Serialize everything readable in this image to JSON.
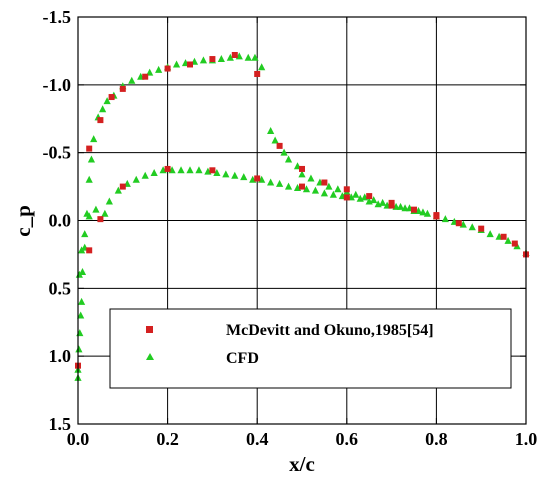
{
  "chart_data": {
    "type": "scatter",
    "xlabel": "x/c",
    "ylabel": "c_p",
    "xlim": [
      0.0,
      1.0
    ],
    "ylim": [
      1.5,
      -1.5
    ],
    "y_axis_inverted": true,
    "x_ticks": [
      "0.0",
      "0.2",
      "0.4",
      "0.6",
      "0.8",
      "1.0"
    ],
    "x_tick_values": [
      0.0,
      0.2,
      0.4,
      0.6,
      0.8,
      1.0
    ],
    "y_ticks": [
      "-1.5",
      "-1.0",
      "-0.5",
      "0.0",
      "0.5",
      "1.0",
      "1.5"
    ],
    "y_tick_values": [
      -1.5,
      -1.0,
      -0.5,
      0.0,
      0.5,
      1.0,
      1.5
    ],
    "grid": true,
    "legend_position": "lower-center",
    "series": [
      {
        "name": "McDevitt and Okuno,1985[54]",
        "marker": "square",
        "color": "#d42020",
        "points": [
          [
            0.0,
            1.07
          ],
          [
            0.025,
            -0.53
          ],
          [
            0.05,
            -0.74
          ],
          [
            0.075,
            -0.91
          ],
          [
            0.1,
            -0.97
          ],
          [
            0.15,
            -1.06
          ],
          [
            0.2,
            -1.12
          ],
          [
            0.25,
            -1.15
          ],
          [
            0.3,
            -1.19
          ],
          [
            0.35,
            -1.22
          ],
          [
            0.4,
            -1.08
          ],
          [
            0.45,
            -0.55
          ],
          [
            0.5,
            -0.38
          ],
          [
            0.55,
            -0.28
          ],
          [
            0.6,
            -0.23
          ],
          [
            0.65,
            -0.18
          ],
          [
            0.7,
            -0.13
          ],
          [
            0.75,
            -0.08
          ],
          [
            0.8,
            -0.03
          ],
          [
            0.85,
            0.02
          ],
          [
            0.9,
            0.06
          ],
          [
            0.95,
            0.12
          ],
          [
            0.975,
            0.17
          ],
          [
            1.0,
            0.25
          ],
          [
            0.025,
            0.22
          ],
          [
            0.05,
            -0.01
          ],
          [
            0.1,
            -0.25
          ],
          [
            0.2,
            -0.38
          ],
          [
            0.3,
            -0.37
          ],
          [
            0.4,
            -0.31
          ],
          [
            0.5,
            -0.25
          ],
          [
            0.6,
            -0.17
          ],
          [
            0.7,
            -0.11
          ],
          [
            0.8,
            -0.04
          ]
        ]
      },
      {
        "name": "CFD",
        "marker": "triangle",
        "color": "#22cc22",
        "points": [
          [
            0.0,
            1.16
          ],
          [
            0.0,
            1.1
          ],
          [
            0.002,
            0.95
          ],
          [
            0.004,
            0.83
          ],
          [
            0.006,
            0.7
          ],
          [
            0.008,
            0.6
          ],
          [
            0.01,
            0.38
          ],
          [
            0.015,
            0.2
          ],
          [
            0.02,
            -0.05
          ],
          [
            0.025,
            -0.3
          ],
          [
            0.03,
            -0.45
          ],
          [
            0.035,
            -0.6
          ],
          [
            0.045,
            -0.76
          ],
          [
            0.055,
            -0.82
          ],
          [
            0.065,
            -0.88
          ],
          [
            0.08,
            -0.92
          ],
          [
            0.1,
            -0.99
          ],
          [
            0.12,
            -1.03
          ],
          [
            0.14,
            -1.06
          ],
          [
            0.16,
            -1.09
          ],
          [
            0.18,
            -1.11
          ],
          [
            0.2,
            -1.13
          ],
          [
            0.22,
            -1.15
          ],
          [
            0.24,
            -1.16
          ],
          [
            0.26,
            -1.17
          ],
          [
            0.28,
            -1.18
          ],
          [
            0.3,
            -1.18
          ],
          [
            0.32,
            -1.19
          ],
          [
            0.34,
            -1.2
          ],
          [
            0.36,
            -1.21
          ],
          [
            0.38,
            -1.2
          ],
          [
            0.395,
            -1.2
          ],
          [
            0.41,
            -1.13
          ],
          [
            0.43,
            -0.66
          ],
          [
            0.44,
            -0.59
          ],
          [
            0.46,
            -0.5
          ],
          [
            0.47,
            -0.45
          ],
          [
            0.49,
            -0.4
          ],
          [
            0.5,
            -0.34
          ],
          [
            0.52,
            -0.31
          ],
          [
            0.54,
            -0.28
          ],
          [
            0.56,
            -0.25
          ],
          [
            0.58,
            -0.23
          ],
          [
            0.6,
            -0.21
          ],
          [
            0.62,
            -0.19
          ],
          [
            0.64,
            -0.17
          ],
          [
            0.66,
            -0.15
          ],
          [
            0.68,
            -0.13
          ],
          [
            0.7,
            -0.12
          ],
          [
            0.72,
            -0.1
          ],
          [
            0.74,
            -0.09
          ],
          [
            0.76,
            -0.07
          ],
          [
            0.78,
            -0.05
          ],
          [
            0.8,
            -0.03
          ],
          [
            0.82,
            -0.01
          ],
          [
            0.84,
            0.01
          ],
          [
            0.86,
            0.03
          ],
          [
            0.88,
            0.05
          ],
          [
            0.9,
            0.07
          ],
          [
            0.92,
            0.1
          ],
          [
            0.94,
            0.12
          ],
          [
            0.96,
            0.15
          ],
          [
            0.98,
            0.19
          ],
          [
            1.0,
            0.24
          ],
          [
            0.003,
            0.4
          ],
          [
            0.008,
            0.22
          ],
          [
            0.015,
            0.1
          ],
          [
            0.025,
            -0.03
          ],
          [
            0.04,
            -0.08
          ],
          [
            0.06,
            -0.05
          ],
          [
            0.07,
            -0.14
          ],
          [
            0.09,
            -0.22
          ],
          [
            0.11,
            -0.27
          ],
          [
            0.13,
            -0.3
          ],
          [
            0.15,
            -0.33
          ],
          [
            0.17,
            -0.35
          ],
          [
            0.19,
            -0.37
          ],
          [
            0.21,
            -0.37
          ],
          [
            0.23,
            -0.37
          ],
          [
            0.25,
            -0.37
          ],
          [
            0.27,
            -0.37
          ],
          [
            0.29,
            -0.36
          ],
          [
            0.31,
            -0.35
          ],
          [
            0.33,
            -0.34
          ],
          [
            0.35,
            -0.33
          ],
          [
            0.37,
            -0.32
          ],
          [
            0.39,
            -0.3
          ],
          [
            0.41,
            -0.3
          ],
          [
            0.43,
            -0.28
          ],
          [
            0.45,
            -0.27
          ],
          [
            0.47,
            -0.25
          ],
          [
            0.49,
            -0.24
          ],
          [
            0.51,
            -0.23
          ],
          [
            0.53,
            -0.22
          ],
          [
            0.55,
            -0.2
          ],
          [
            0.57,
            -0.19
          ],
          [
            0.59,
            -0.18
          ],
          [
            0.61,
            -0.17
          ],
          [
            0.63,
            -0.16
          ],
          [
            0.65,
            -0.14
          ],
          [
            0.67,
            -0.12
          ],
          [
            0.69,
            -0.11
          ],
          [
            0.71,
            -0.1
          ],
          [
            0.73,
            -0.09
          ],
          [
            0.75,
            -0.07
          ],
          [
            0.77,
            -0.06
          ]
        ]
      }
    ]
  }
}
